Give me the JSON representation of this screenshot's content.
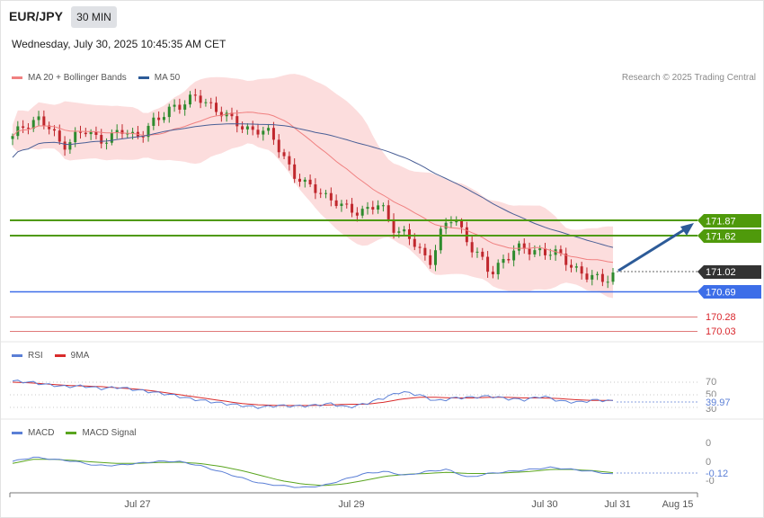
{
  "header": {
    "symbol": "EUR/JPY",
    "timeframe": "30 MIN",
    "datetime": "Wednesday, July 30, 2025 10:45:35 AM CET",
    "credit": "Research © 2025 Trading Central"
  },
  "colors": {
    "bull_candle": "#2e8b2e",
    "bear_candle": "#c0272d",
    "bollinger_fill": "#fbd7d7",
    "ma20": "#f08080",
    "ma50": "#4a5f96",
    "resistance": "#4f9a0b",
    "support": "#3d6ee8",
    "weak_support": "#e07a7a",
    "current_price": "#333333",
    "forecast_arrow": "#2d5b98",
    "rsi": "#5b7fd6",
    "rsi_ma": "#d92b2b",
    "macd": "#5b7fd6",
    "macd_signal": "#5aa51f"
  },
  "price_panel": {
    "legend": [
      {
        "label": "MA 20 + Bollinger Bands",
        "color": "#f08080"
      },
      {
        "label": "MA 50",
        "color": "#2d5b98"
      }
    ],
    "levels": [
      {
        "label": "171.87",
        "kind": "resistance",
        "color": "#4f9a0b"
      },
      {
        "label": "171.62",
        "kind": "resistance",
        "color": "#4f9a0b"
      },
      {
        "label": "171.02",
        "kind": "current",
        "color": "#333333"
      },
      {
        "label": "170.69",
        "kind": "support",
        "color": "#3d6ee8"
      },
      {
        "label": "170.28",
        "kind": "support-text",
        "color": "#d9262c"
      },
      {
        "label": "170.03",
        "kind": "support-text",
        "color": "#d9262c"
      }
    ]
  },
  "rsi_panel": {
    "legend": [
      {
        "label": "RSI",
        "color": "#5b7fd6"
      },
      {
        "label": "9MA",
        "color": "#d92b2b"
      }
    ],
    "ticks": [
      "70",
      "50",
      "30"
    ],
    "value": "39.97"
  },
  "macd_panel": {
    "legend": [
      {
        "label": "MACD",
        "color": "#5b7fd6"
      },
      {
        "label": "MACD Signal",
        "color": "#5aa51f"
      }
    ],
    "ticks": [
      "0",
      "0",
      "-0"
    ],
    "value": "-0.12"
  },
  "x_axis": {
    "labels": [
      "Jul 27",
      "Jul 29",
      "Jul 30",
      "Jul 31",
      "Aug 15"
    ]
  },
  "chart_data": {
    "type": "candlestick",
    "timeframe": "30 MIN",
    "symbol": "EUR/JPY",
    "price_trend": [
      173.2,
      173.45,
      173.55,
      173.35,
      173.1,
      173.25,
      173.3,
      173.2,
      173.25,
      173.3,
      173.25,
      173.4,
      173.5,
      173.75,
      173.8,
      173.85,
      173.8,
      173.65,
      173.45,
      173.4,
      173.35,
      173.25,
      173.0,
      172.6,
      172.4,
      172.4,
      172.2,
      172.05,
      172.05,
      172.05,
      172.1,
      171.8,
      171.65,
      171.4,
      171.2,
      171.7,
      171.9,
      171.6,
      171.3,
      170.95,
      171.25,
      171.4,
      171.35,
      171.4,
      171.35,
      171.2,
      171.1,
      170.95,
      170.85,
      171.02
    ],
    "rsi": {
      "ticks": [
        70,
        50,
        30
      ],
      "last": 39.97,
      "rsi_values": [
        72,
        70,
        66,
        63,
        64,
        60,
        62,
        58,
        54,
        50,
        44,
        40,
        36,
        33,
        30,
        33,
        32,
        33,
        36,
        30,
        36,
        45,
        55,
        50,
        40,
        45,
        46,
        48,
        44,
        42,
        48,
        40,
        38,
        42,
        39.97
      ],
      "ma_values": [
        70,
        69,
        67,
        65,
        64,
        63,
        61,
        59,
        56,
        52,
        48,
        44,
        40,
        36,
        34,
        33,
        33,
        33,
        34,
        35,
        35,
        38,
        43,
        46,
        46,
        45,
        45,
        46,
        46,
        45,
        45,
        44,
        42,
        41,
        41
      ]
    },
    "macd": {
      "last": -0.12,
      "macd_values": [
        0.2,
        0.3,
        0.25,
        0.2,
        0.1,
        0.1,
        0.15,
        0.2,
        0.2,
        0.1,
        -0.05,
        -0.2,
        -0.35,
        -0.4,
        -0.45,
        -0.4,
        -0.25,
        -0.1,
        -0.05,
        -0.15,
        -0.05,
        0.0,
        -0.2,
        -0.1,
        -0.05,
        0.0,
        0.05,
        0.0,
        -0.05,
        -0.12
      ],
      "signal_values": [
        0.15,
        0.25,
        0.25,
        0.22,
        0.18,
        0.15,
        0.15,
        0.17,
        0.18,
        0.15,
        0.08,
        -0.02,
        -0.15,
        -0.28,
        -0.36,
        -0.4,
        -0.36,
        -0.27,
        -0.17,
        -0.12,
        -0.1,
        -0.07,
        -0.1,
        -0.1,
        -0.08,
        -0.05,
        0.0,
        0.0,
        -0.03,
        -0.08
      ]
    }
  }
}
